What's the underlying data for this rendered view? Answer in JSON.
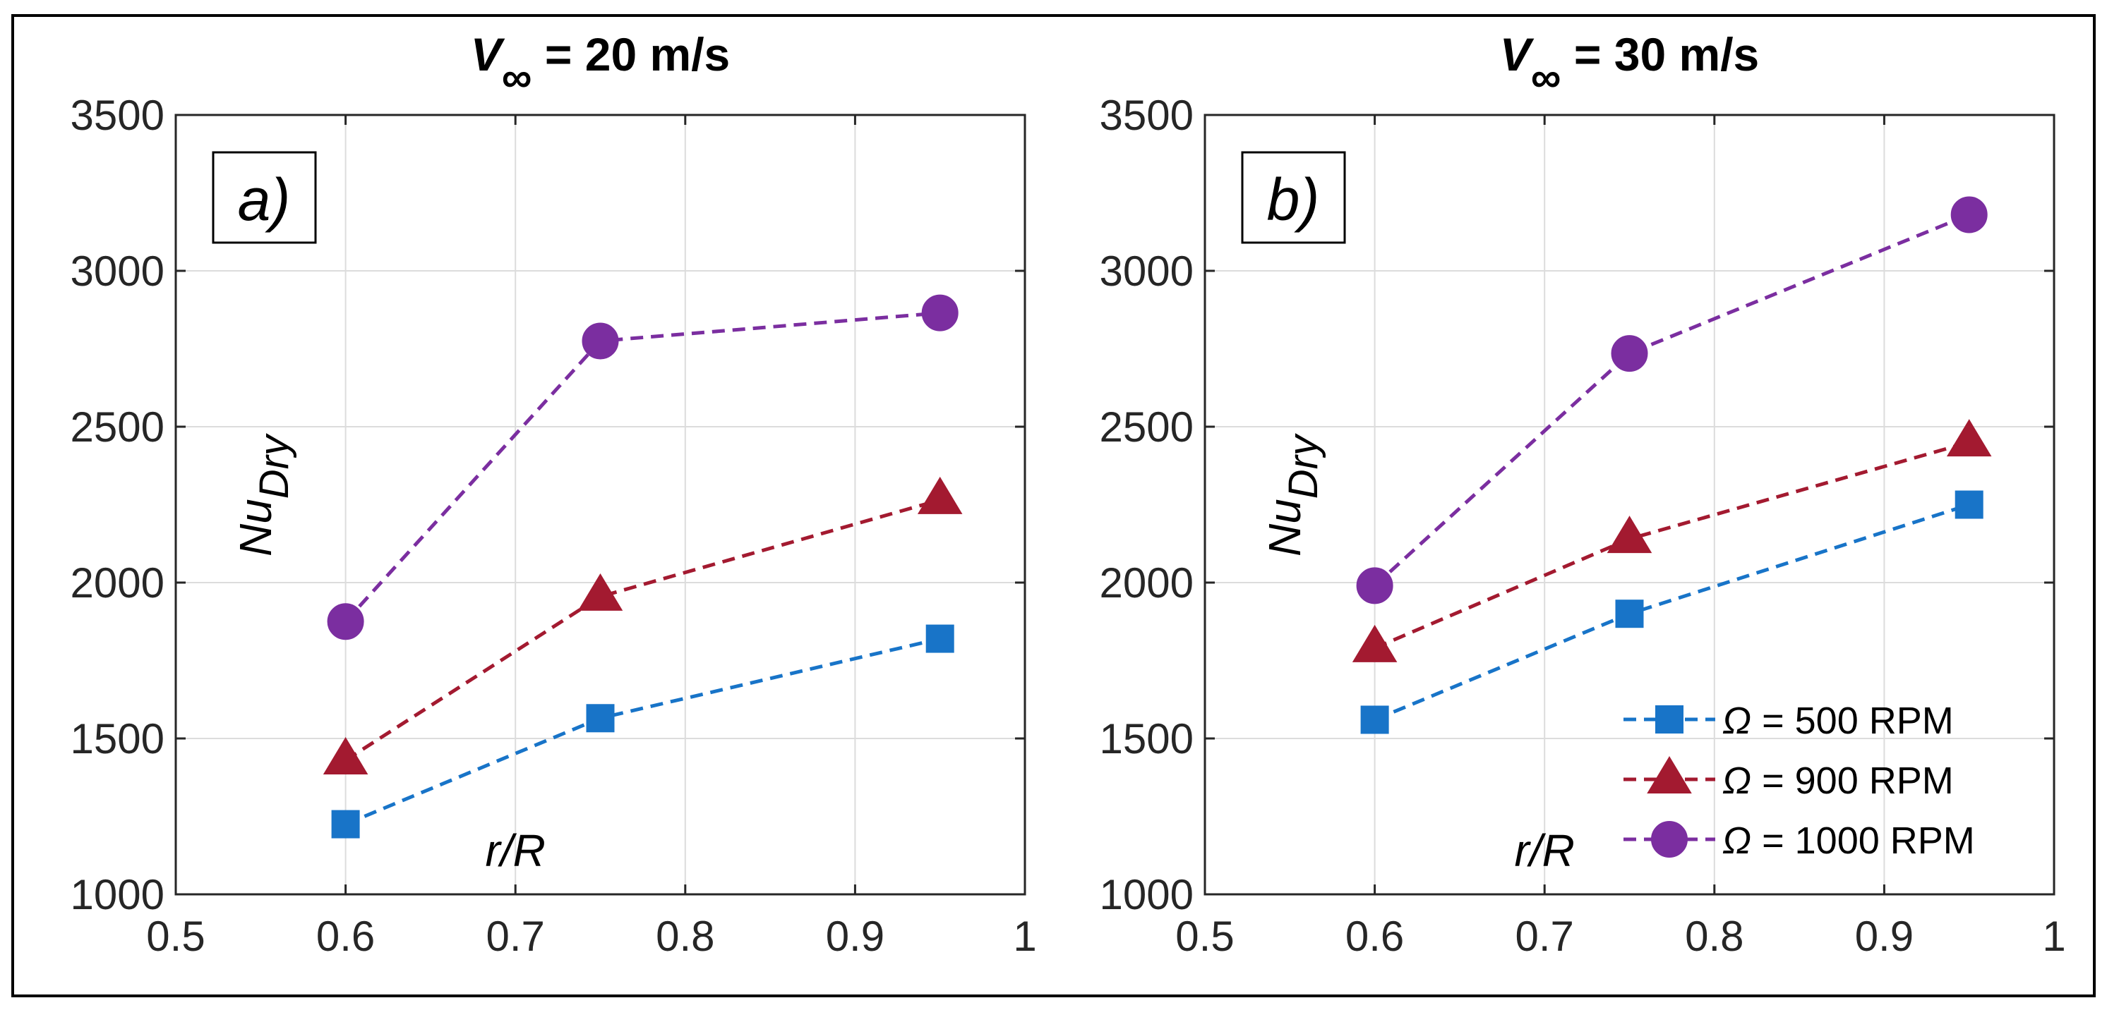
{
  "chart_data": [
    {
      "type": "line",
      "panel_label": "a)",
      "title": "V∞ = 20 m/s",
      "title_main": "V",
      "title_sub": "∞",
      "title_rest": " = 20 m/s",
      "xlabel": "r/R",
      "ylabel": "Nu",
      "ylabel_sub": "Dry",
      "xlim": [
        0.5,
        1
      ],
      "ylim": [
        1000,
        3500
      ],
      "xticks": [
        0.5,
        0.6,
        0.7,
        0.8,
        0.9,
        1
      ],
      "xtick_labels": [
        "0.5",
        "0.6",
        "0.7",
        "0.8",
        "0.9",
        "1"
      ],
      "yticks": [
        1000,
        1500,
        2000,
        2500,
        3000,
        3500
      ],
      "ytick_labels": [
        "1000",
        "1500",
        "2000",
        "2500",
        "3000",
        "3500"
      ],
      "grid": true,
      "x": [
        0.6,
        0.75,
        0.95
      ],
      "series": [
        {
          "name": "Ω = 500 RPM",
          "values": [
            1225,
            1565,
            1820
          ],
          "color": "#1874c8",
          "marker": "square"
        },
        {
          "name": "Ω = 900 RPM",
          "values": [
            1430,
            1955,
            2265
          ],
          "color": "#a31a30",
          "marker": "triangle"
        },
        {
          "name": "Ω = 1000 RPM",
          "values": [
            1875,
            2775,
            2865
          ],
          "color": "#7b2ea0",
          "marker": "circle"
        }
      ]
    },
    {
      "type": "line",
      "panel_label": "b)",
      "title": "V∞ = 30 m/s",
      "title_main": "V",
      "title_sub": "∞",
      "title_rest": " = 30 m/s",
      "xlabel": "r/R",
      "ylabel": "Nu",
      "ylabel_sub": "Dry",
      "xlim": [
        0.5,
        1
      ],
      "ylim": [
        1000,
        3500
      ],
      "xticks": [
        0.5,
        0.6,
        0.7,
        0.8,
        0.9,
        1
      ],
      "xtick_labels": [
        "0.5",
        "0.6",
        "0.7",
        "0.8",
        "0.9",
        "1"
      ],
      "yticks": [
        1000,
        1500,
        2000,
        2500,
        3000,
        3500
      ],
      "ytick_labels": [
        "1000",
        "1500",
        "2000",
        "2500",
        "3000",
        "3500"
      ],
      "grid": true,
      "legend": "bottom-right",
      "x": [
        0.6,
        0.75,
        0.95
      ],
      "series": [
        {
          "name": "Ω = 500 RPM",
          "values": [
            1560,
            1900,
            2250
          ],
          "color": "#1874c8",
          "marker": "square"
        },
        {
          "name": "Ω = 900 RPM",
          "values": [
            1790,
            2140,
            2450
          ],
          "color": "#a31a30",
          "marker": "triangle"
        },
        {
          "name": "Ω = 1000 RPM",
          "values": [
            1990,
            2735,
            3180
          ],
          "color": "#7b2ea0",
          "marker": "circle"
        }
      ]
    }
  ],
  "legend_entries": [
    {
      "symbol": "Ω",
      "text": " = 500 RPM"
    },
    {
      "symbol": "Ω",
      "text": " = 900 RPM"
    },
    {
      "symbol": "Ω",
      "text": " = 1000 RPM"
    }
  ]
}
